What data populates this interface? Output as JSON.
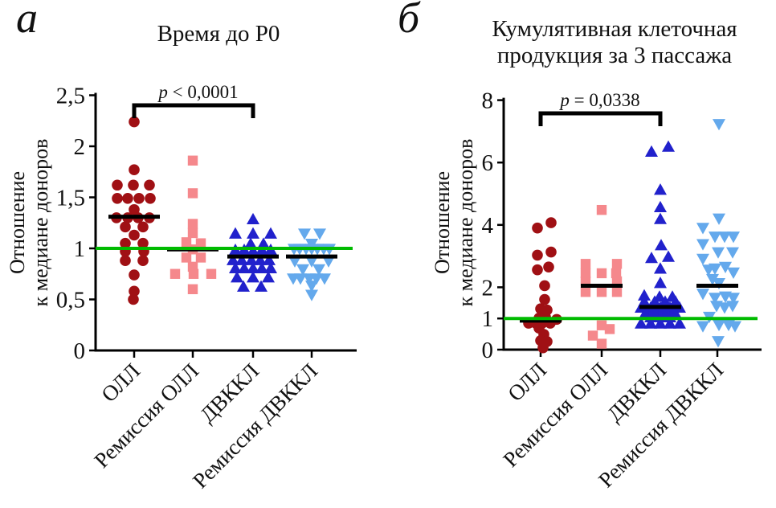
{
  "figure": {
    "panel_labels": {
      "a": "а",
      "b": "б"
    },
    "background": "#ffffff",
    "axis_color": "#000000"
  },
  "chart_data": [
    {
      "panel": "а",
      "type": "scatter",
      "title": "Время до P0",
      "title_lines": [
        "Время до P0"
      ],
      "ylabel": "Отношение к медиане доноров",
      "ylabel_lines": [
        "Отношение",
        "к медиане доноров"
      ],
      "ylim": [
        0,
        2.5
      ],
      "ytick_values": [
        0,
        0.5,
        1,
        1.5,
        2,
        2.5
      ],
      "ytick_labels": [
        "0",
        "0,5",
        "1",
        "1,5",
        "2",
        "2,5"
      ],
      "categories": [
        "ОЛЛ",
        "Ремиссия ОЛЛ",
        "ДВККЛ",
        "Ремиссия ДВККЛ"
      ],
      "reference_line": {
        "y": 1,
        "color": "#00BB00"
      },
      "significance": {
        "label": "p < 0,0001",
        "text_italic": "p",
        "text_rest": " < 0,0001",
        "from_index": 0,
        "to_index": 2
      },
      "series": [
        {
          "name": "ОЛЛ",
          "marker": "circle",
          "color": "#A01014",
          "median": 1.31,
          "points": [
            [
              2.24,
              0
            ],
            [
              1.77,
              0
            ],
            [
              1.62,
              -21
            ],
            [
              1.62,
              -1
            ],
            [
              1.62,
              19
            ],
            [
              1.49,
              -21
            ],
            [
              1.49,
              -8
            ],
            [
              1.49,
              6
            ],
            [
              1.49,
              20
            ],
            [
              1.38,
              0
            ],
            [
              1.3,
              -22
            ],
            [
              1.3,
              -8
            ],
            [
              1.3,
              5
            ],
            [
              1.3,
              19
            ],
            [
              1.21,
              -11
            ],
            [
              1.21,
              11
            ],
            [
              1.13,
              0
            ],
            [
              1.05,
              -11
            ],
            [
              1.05,
              11
            ],
            [
              0.97,
              -11
            ],
            [
              0.97,
              12
            ],
            [
              0.88,
              -11
            ],
            [
              0.88,
              11
            ],
            [
              0.74,
              0
            ],
            [
              0.58,
              0
            ],
            [
              0.5,
              -1
            ]
          ]
        },
        {
          "name": "Ремиссия ОЛЛ",
          "marker": "square",
          "color": "#F5888C",
          "median": 0.99,
          "points": [
            [
              1.86,
              0
            ],
            [
              1.54,
              0
            ],
            [
              1.24,
              0
            ],
            [
              1.15,
              0
            ],
            [
              1.06,
              -8
            ],
            [
              1.05,
              10
            ],
            [
              0.99,
              0
            ],
            [
              0.91,
              -8
            ],
            [
              0.91,
              10
            ],
            [
              0.82,
              0
            ],
            [
              0.75,
              -22
            ],
            [
              0.75,
              1
            ],
            [
              0.75,
              23
            ],
            [
              0.6,
              0
            ]
          ]
        },
        {
          "name": "ДВККЛ",
          "marker": "triangle-up",
          "color": "#2121CC",
          "median": 0.92,
          "points": [
            [
              1.28,
              0
            ],
            [
              1.14,
              -22
            ],
            [
              1.14,
              0
            ],
            [
              1.14,
              22
            ],
            [
              1.04,
              -3
            ],
            [
              1.04,
              13
            ],
            [
              0.98,
              -22
            ],
            [
              0.98,
              -11
            ],
            [
              0.97,
              0
            ],
            [
              0.98,
              11
            ],
            [
              0.98,
              22
            ],
            [
              0.88,
              -25
            ],
            [
              0.88,
              -14
            ],
            [
              0.88,
              -2
            ],
            [
              0.88,
              9
            ],
            [
              0.88,
              20
            ],
            [
              0.8,
              -22
            ],
            [
              0.8,
              -11
            ],
            [
              0.8,
              0
            ],
            [
              0.8,
              11
            ],
            [
              0.8,
              22
            ],
            [
              0.71,
              -20
            ],
            [
              0.71,
              0
            ],
            [
              0.71,
              19
            ],
            [
              0.62,
              -12
            ],
            [
              0.62,
              10
            ]
          ]
        },
        {
          "name": "Ремиссия ДВККЛ",
          "marker": "triangle-down",
          "color": "#64A9EC",
          "median": 0.92,
          "points": [
            [
              1.15,
              -9
            ],
            [
              1.15,
              10
            ],
            [
              1.05,
              0
            ],
            [
              1.0,
              -22
            ],
            [
              1.0,
              -15
            ],
            [
              1.0,
              -7
            ],
            [
              1.0,
              0
            ],
            [
              1.0,
              7
            ],
            [
              1.0,
              15
            ],
            [
              1.0,
              22
            ],
            [
              0.88,
              -21
            ],
            [
              0.88,
              0
            ],
            [
              0.88,
              21
            ],
            [
              0.8,
              -11
            ],
            [
              0.8,
              9
            ],
            [
              0.71,
              -23
            ],
            [
              0.71,
              -14
            ],
            [
              0.71,
              -3
            ],
            [
              0.71,
              6
            ],
            [
              0.71,
              16
            ],
            [
              0.64,
              0
            ],
            [
              0.55,
              0
            ]
          ]
        }
      ]
    },
    {
      "panel": "б",
      "type": "scatter",
      "title": "Кумулятивная клеточная продукция за 3 пассажа",
      "title_lines": [
        "Кумулятивная клеточная",
        "продукция за 3 пассажа"
      ],
      "ylabel": "Отношение к медиане доноров",
      "ylabel_lines": [
        "Отношение",
        "к медиане доноров"
      ],
      "ylim": [
        0,
        8
      ],
      "ytick_values": [
        0,
        1,
        2,
        4,
        6,
        8
      ],
      "ytick_labels": [
        "0",
        "1",
        "2",
        "4",
        "6",
        "8"
      ],
      "categories": [
        "ОЛЛ",
        "Ремиссия ОЛЛ",
        "ДВККЛ",
        "Ремиссия ДВККЛ"
      ],
      "reference_line": {
        "y": 1,
        "color": "#00BB00"
      },
      "significance": {
        "label": "p = 0,0338",
        "text_italic": "p",
        "text_rest": " = 0,0338",
        "from_index": 0,
        "to_index": 2
      },
      "series": [
        {
          "name": "ОЛЛ",
          "marker": "circle",
          "color": "#A01014",
          "median": 0.93,
          "points": [
            [
              4.07,
              13
            ],
            [
              3.9,
              -4
            ],
            [
              3.13,
              13
            ],
            [
              3.03,
              -4
            ],
            [
              2.65,
              10
            ],
            [
              2.56,
              -4
            ],
            [
              2.05,
              5
            ],
            [
              1.61,
              5
            ],
            [
              1.31,
              0
            ],
            [
              1.27,
              8
            ],
            [
              1.05,
              6
            ],
            [
              1.01,
              -2
            ],
            [
              0.97,
              20
            ],
            [
              0.85,
              -15
            ],
            [
              0.85,
              -6
            ],
            [
              0.85,
              2
            ],
            [
              0.85,
              12
            ],
            [
              0.69,
              -2
            ],
            [
              0.49,
              4
            ],
            [
              0.29,
              0
            ],
            [
              0.26,
              8
            ],
            [
              0.06,
              3
            ]
          ]
        },
        {
          "name": "Ремиссия ОЛЛ",
          "marker": "square",
          "color": "#F5888C",
          "median": 2.05,
          "points": [
            [
              4.48,
              0
            ],
            [
              2.75,
              -20
            ],
            [
              2.75,
              19
            ],
            [
              2.45,
              -20
            ],
            [
              2.45,
              0
            ],
            [
              2.45,
              18
            ],
            [
              2.19,
              -20
            ],
            [
              2.19,
              19
            ],
            [
              1.85,
              -20
            ],
            [
              1.85,
              0
            ],
            [
              1.85,
              19
            ],
            [
              0.78,
              0
            ],
            [
              0.66,
              10
            ],
            [
              0.45,
              -11
            ],
            [
              0.19,
              0
            ]
          ]
        },
        {
          "name": "ДВККЛ",
          "marker": "triangle-up",
          "color": "#2121CC",
          "median": 1.37,
          "points": [
            [
              6.49,
              10
            ],
            [
              6.33,
              -11
            ],
            [
              5.11,
              0
            ],
            [
              4.55,
              0
            ],
            [
              4.17,
              0
            ],
            [
              3.33,
              1
            ],
            [
              2.96,
              10
            ],
            [
              2.92,
              -11
            ],
            [
              2.58,
              0
            ],
            [
              2.12,
              0
            ],
            [
              1.72,
              -20
            ],
            [
              1.68,
              -1
            ],
            [
              1.68,
              15
            ],
            [
              1.52,
              -20
            ],
            [
              1.52,
              -7
            ],
            [
              1.52,
              6
            ],
            [
              1.52,
              19
            ],
            [
              1.33,
              -24
            ],
            [
              1.33,
              -12
            ],
            [
              1.33,
              0
            ],
            [
              1.33,
              12
            ],
            [
              1.33,
              24
            ],
            [
              1.18,
              -18
            ],
            [
              1.18,
              -6
            ],
            [
              1.18,
              6
            ],
            [
              1.18,
              18
            ],
            [
              1.02,
              -12
            ],
            [
              1.02,
              0
            ],
            [
              1.02,
              12
            ],
            [
              0.82,
              -24
            ],
            [
              0.82,
              -12
            ],
            [
              0.82,
              0
            ],
            [
              0.82,
              12
            ],
            [
              0.82,
              24
            ]
          ]
        },
        {
          "name": "Ремиссия ДВККЛ",
          "marker": "triangle-down",
          "color": "#64A9EC",
          "median": 2.05,
          "points": [
            [
              7.25,
              2
            ],
            [
              4.22,
              2
            ],
            [
              3.92,
              -18
            ],
            [
              3.64,
              -3
            ],
            [
              3.64,
              9
            ],
            [
              3.64,
              20
            ],
            [
              3.4,
              -18
            ],
            [
              3.14,
              1
            ],
            [
              3.14,
              19
            ],
            [
              2.93,
              -18
            ],
            [
              2.67,
              10
            ],
            [
              2.62,
              -3
            ],
            [
              2.58,
              -11
            ],
            [
              2.49,
              20
            ],
            [
              2.28,
              -6
            ],
            [
              2.15,
              2
            ],
            [
              1.81,
              -18
            ],
            [
              1.72,
              10
            ],
            [
              1.68,
              -3
            ],
            [
              1.68,
              20
            ],
            [
              1.42,
              -1
            ],
            [
              1.42,
              19
            ],
            [
              1.37,
              9
            ],
            [
              1.07,
              -10
            ],
            [
              0.81,
              2
            ],
            [
              0.81,
              14
            ],
            [
              0.77,
              -18
            ],
            [
              0.77,
              22
            ],
            [
              0.29,
              1
            ]
          ]
        }
      ]
    }
  ]
}
